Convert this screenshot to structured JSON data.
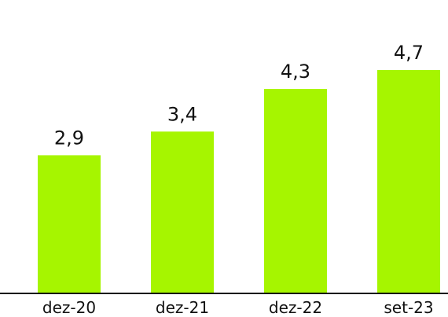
{
  "chart_data": {
    "type": "bar",
    "categories": [
      "dez-20",
      "dez-21",
      "dez-22",
      "set-23"
    ],
    "values": [
      2.9,
      3.4,
      4.3,
      4.7
    ],
    "value_labels": [
      "2,9",
      "3,4",
      "4,3",
      "4,7"
    ],
    "color": "#a6f500"
  }
}
